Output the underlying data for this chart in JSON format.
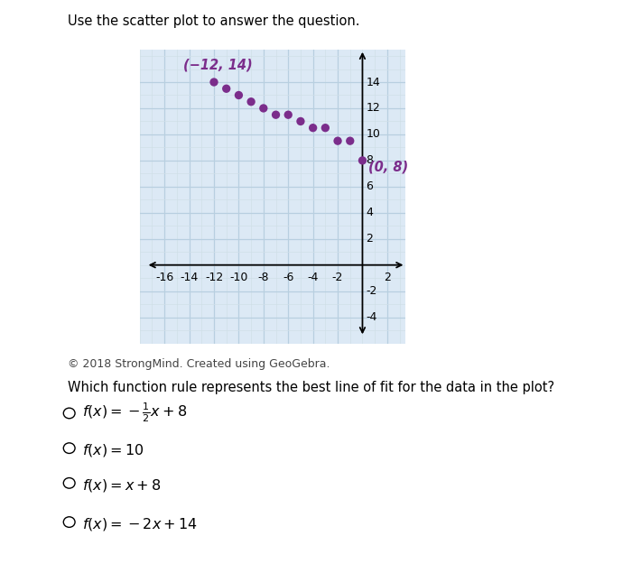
{
  "scatter_x": [
    -12,
    -11,
    -10,
    -9,
    -8,
    -7,
    -6,
    -5,
    -4,
    -3,
    -2,
    -1,
    0
  ],
  "scatter_y": [
    14,
    13.5,
    13,
    12.5,
    12,
    11.5,
    11.5,
    11,
    10.5,
    10.5,
    9.5,
    9.5,
    8
  ],
  "point_color": "#7B2D8B",
  "point_size": 45,
  "label1_text": "(−12, 14)",
  "label2_text": "(0, 8)",
  "label_color": "#7B2D8B",
  "label_fontsize": 10,
  "xlim": [
    -17.5,
    3.5
  ],
  "ylim": [
    -5.5,
    16.5
  ],
  "xticks": [
    -16,
    -14,
    -12,
    -10,
    -8,
    -6,
    -4,
    -2,
    2
  ],
  "yticks": [
    -4,
    -2,
    2,
    4,
    6,
    8,
    10,
    12,
    14
  ],
  "grid_color": "#b8cfe0",
  "grid_alpha": 1.0,
  "background_color": "#dce9f5",
  "title_text": "Use the scatter plot to answer the question.",
  "title_fontsize": 10.5,
  "question_text": "Which function rule represents the best line of fit for the data in the plot?",
  "question_fontsize": 10.5,
  "copyright_text": "© 2018 StrongMind. Created using GeoGebra.",
  "copyright_fontsize": 9,
  "axis_fontsize": 9,
  "minor_grid_color": "#d0dfe8",
  "minor_grid_alpha": 1.0
}
